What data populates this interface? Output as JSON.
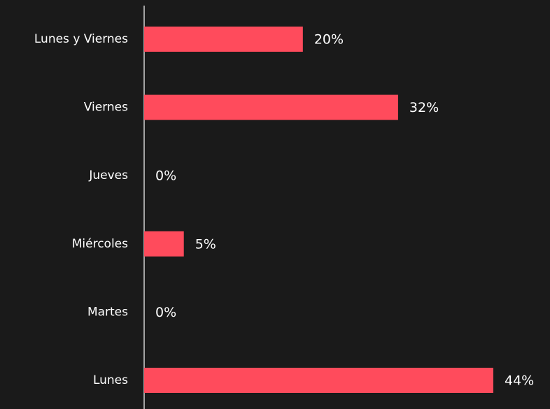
{
  "chart_data": {
    "type": "bar",
    "orientation": "horizontal",
    "categories": [
      "Lunes y Viernes",
      "Viernes",
      "Jueves",
      "Miércoles",
      "Martes",
      "Lunes"
    ],
    "values": [
      20,
      32,
      0,
      5,
      0,
      44
    ],
    "value_labels": [
      "20%",
      "32%",
      "0%",
      "5%",
      "0%",
      "44%"
    ],
    "color": "#ff4b5c"
  }
}
